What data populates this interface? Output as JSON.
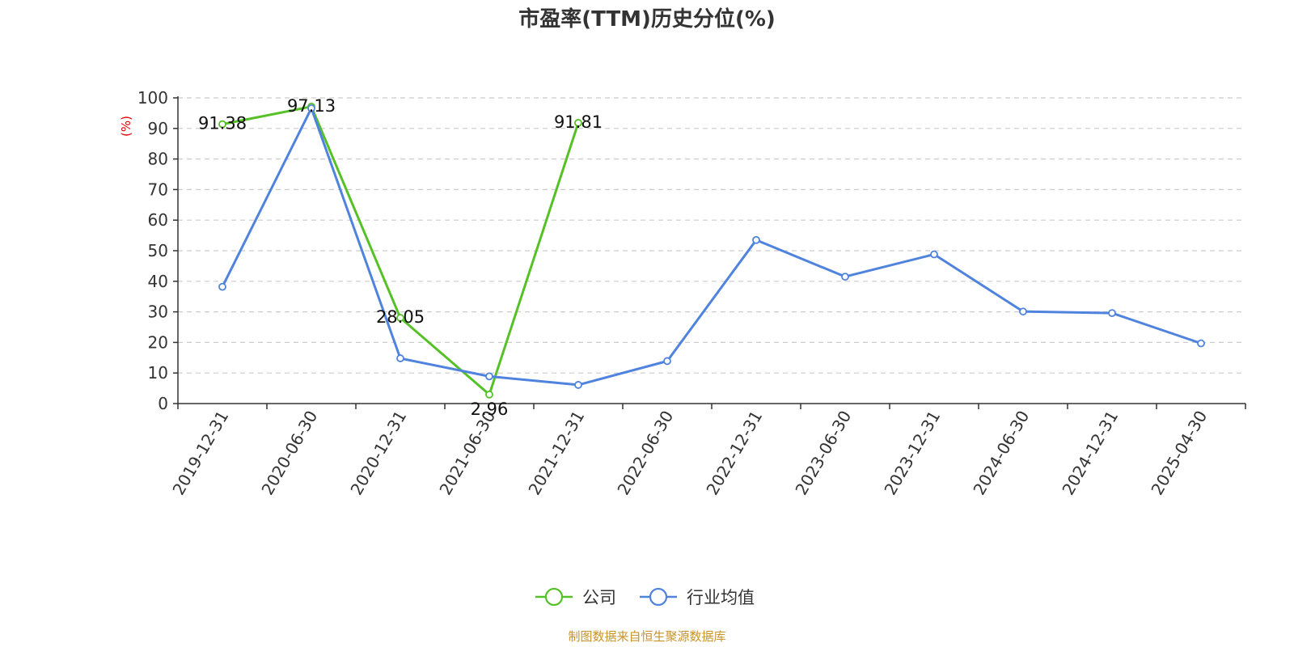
{
  "chart_data": {
    "type": "line",
    "title": "市盈率(TTM)历史分位(%)",
    "ylabel": "(%)",
    "ylim": [
      0,
      100
    ],
    "yticks": [
      0,
      10,
      20,
      30,
      40,
      50,
      60,
      70,
      80,
      90,
      100
    ],
    "grid": true,
    "legend_position": "bottom-center",
    "categories": [
      "2019-12-31",
      "2020-06-30",
      "2020-12-31",
      "2021-06-30",
      "2021-12-31",
      "2022-06-30",
      "2022-12-31",
      "2023-06-30",
      "2023-12-31",
      "2024-06-30",
      "2024-12-31",
      "2025-04-30"
    ],
    "series": [
      {
        "name": "公司",
        "color": "#55c127",
        "values": [
          91.38,
          97.13,
          28.05,
          2.96,
          91.81,
          null,
          null,
          null,
          null,
          null,
          null,
          null
        ],
        "labels": [
          "91.38",
          "97.13",
          "28.05",
          "2.96",
          "91.81"
        ]
      },
      {
        "name": "行业均值",
        "color": "#4f83dd",
        "values": [
          38.2,
          96.6,
          14.8,
          8.9,
          6.1,
          13.9,
          53.5,
          41.5,
          48.8,
          30.1,
          29.6,
          19.7
        ]
      }
    ]
  },
  "source_note": "制图数据来自恒生聚源数据库"
}
